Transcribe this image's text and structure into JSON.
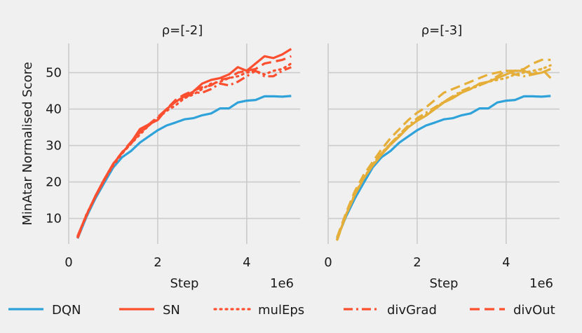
{
  "chart_data": {
    "type": "line",
    "ylabel": "MinAtar Normalised Score",
    "xlabel": "Step",
    "x_offset_label": "1e6",
    "xlim": [
      0,
      5.2
    ],
    "ylim": [
      3,
      58
    ],
    "xticks": [
      0,
      2,
      4
    ],
    "yticks": [
      10,
      20,
      30,
      40,
      50
    ],
    "grid": true,
    "legend_position": "bottom",
    "x": [
      0.2,
      0.4,
      0.6,
      0.8,
      1.0,
      1.2,
      1.4,
      1.6,
      1.8,
      2.0,
      2.2,
      2.4,
      2.6,
      2.8,
      3.0,
      3.2,
      3.4,
      3.6,
      3.8,
      4.0,
      4.2,
      4.4,
      4.6,
      4.8,
      5.0
    ],
    "series_styles": [
      {
        "name": "DQN",
        "dash": "solid"
      },
      {
        "name": "SN",
        "dash": "solid"
      },
      {
        "name": "mulEps",
        "dash": "dotted"
      },
      {
        "name": "divGrad",
        "dash": "dashdot"
      },
      {
        "name": "divOut",
        "dash": "dashed"
      }
    ],
    "panels": [
      {
        "title": "ρ=[-2]",
        "show_ylabel": true,
        "show_ytick_labels": true,
        "color": "#fc4f30",
        "series": [
          {
            "name": "DQN",
            "color": "#30a2da",
            "values": [
              4.5,
              10.5,
              15.5,
              19.8,
              24.0,
              26.8,
              28.5,
              30.8,
              32.5,
              34.2,
              35.5,
              36.3,
              37.2,
              37.5,
              38.3,
              38.8,
              40.2,
              40.2,
              41.8,
              42.3,
              42.5,
              43.5,
              43.5,
              43.4,
              43.6
            ]
          },
          {
            "name": "SN",
            "values": [
              5.2,
              11.0,
              16.2,
              20.8,
              25.0,
              28.0,
              30.8,
              34.5,
              35.8,
              37.0,
              40.0,
              42.0,
              43.5,
              44.8,
              47.0,
              48.0,
              48.5,
              49.5,
              51.5,
              50.5,
              52.5,
              54.5,
              54.0,
              55.0,
              56.5
            ]
          },
          {
            "name": "mulEps",
            "values": [
              5.0,
              11.2,
              16.0,
              20.5,
              24.5,
              27.8,
              30.5,
              33.0,
              35.5,
              37.5,
              39.5,
              41.0,
              43.0,
              44.0,
              45.5,
              47.0,
              47.5,
              48.5,
              49.0,
              50.0,
              50.5,
              49.5,
              50.5,
              51.0,
              52.5
            ]
          },
          {
            "name": "divGrad",
            "values": [
              4.6,
              10.8,
              16.0,
              20.5,
              24.8,
              28.0,
              30.5,
              33.5,
              35.5,
              37.5,
              40.0,
              42.0,
              43.0,
              44.5,
              44.5,
              45.5,
              47.0,
              46.5,
              47.5,
              49.0,
              50.5,
              49.0,
              49.0,
              50.5,
              51.5
            ]
          },
          {
            "name": "divOut",
            "values": [
              5.0,
              11.0,
              16.0,
              20.5,
              25.0,
              28.2,
              31.0,
              33.8,
              35.8,
              37.8,
              40.0,
              42.5,
              44.0,
              45.0,
              46.0,
              46.5,
              48.0,
              48.5,
              50.0,
              50.5,
              51.0,
              52.5,
              53.0,
              53.5,
              54.5
            ]
          }
        ]
      },
      {
        "title": "ρ=[-3]",
        "show_ylabel": false,
        "show_ytick_labels": false,
        "color": "#e5ae38",
        "series": [
          {
            "name": "DQN",
            "color": "#30a2da",
            "values": [
              4.5,
              10.5,
              15.5,
              19.8,
              24.0,
              26.8,
              28.5,
              30.8,
              32.5,
              34.2,
              35.5,
              36.3,
              37.2,
              37.5,
              38.3,
              38.8,
              40.2,
              40.2,
              41.8,
              42.3,
              42.5,
              43.5,
              43.5,
              43.4,
              43.6
            ]
          },
          {
            "name": "SN",
            "values": [
              4.2,
              11.0,
              16.5,
              21.0,
              24.5,
              27.5,
              30.2,
              32.5,
              35.0,
              36.8,
              38.2,
              40.0,
              41.8,
              43.0,
              44.5,
              45.5,
              47.0,
              47.5,
              48.5,
              49.5,
              50.5,
              50.5,
              49.5,
              50.0,
              51.0
            ]
          },
          {
            "name": "mulEps",
            "values": [
              4.2,
              11.0,
              16.8,
              21.2,
              24.8,
              28.0,
              30.5,
              32.8,
              35.2,
              37.0,
              38.5,
              40.2,
              42.0,
              43.2,
              44.8,
              45.5,
              46.5,
              47.5,
              48.0,
              48.5,
              49.5,
              50.0,
              50.5,
              51.0,
              52.0
            ]
          },
          {
            "name": "divGrad",
            "values": [
              4.0,
              10.8,
              16.5,
              21.0,
              24.8,
              27.8,
              30.5,
              33.0,
              35.5,
              37.5,
              39.0,
              40.5,
              42.0,
              43.5,
              45.0,
              46.0,
              46.5,
              47.5,
              49.0,
              50.5,
              49.5,
              49.0,
              49.5,
              51.0,
              48.5
            ]
          },
          {
            "name": "divOut",
            "values": [
              4.8,
              11.5,
              17.5,
              22.0,
              25.5,
              29.0,
              32.0,
              34.5,
              37.0,
              39.0,
              40.5,
              42.5,
              44.5,
              45.5,
              46.5,
              47.5,
              48.5,
              49.5,
              50.0,
              50.5,
              50.5,
              51.0,
              52.5,
              53.5,
              53.5
            ]
          }
        ]
      }
    ]
  }
}
